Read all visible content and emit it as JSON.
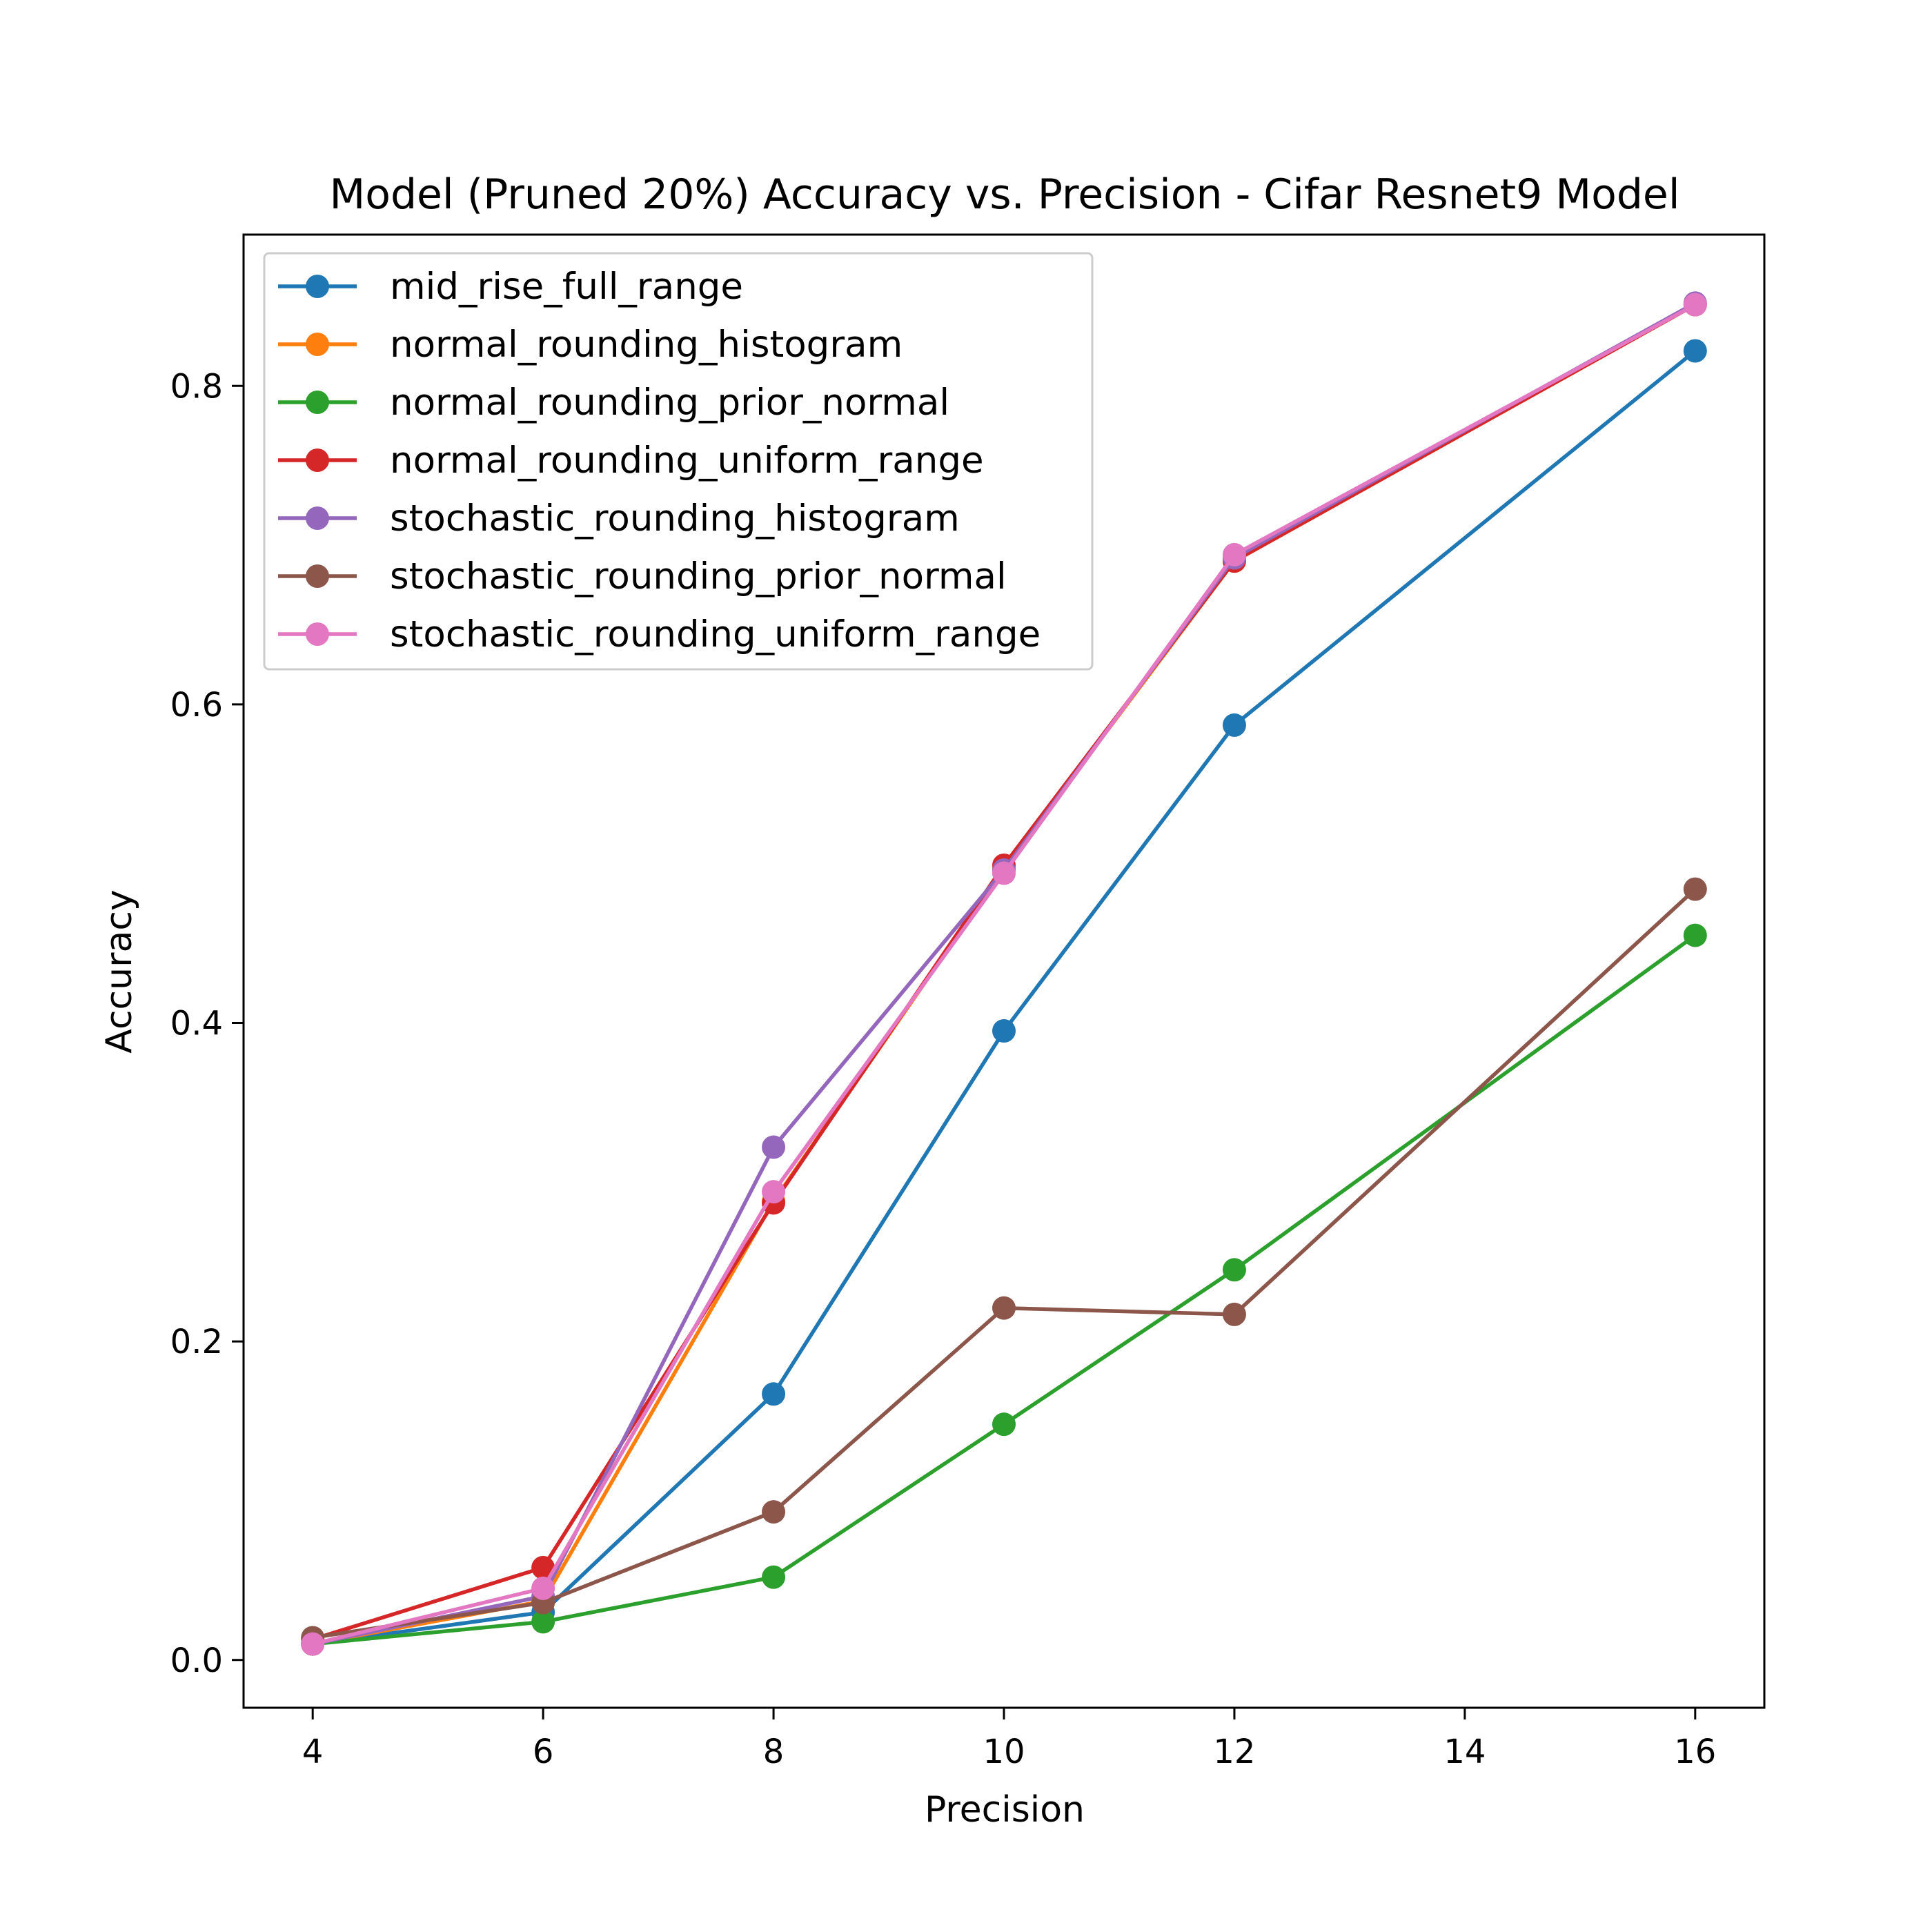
{
  "chart_data": {
    "type": "line",
    "title": "Model (Pruned 20%) Accuracy vs. Precision - Cifar Resnet9 Model",
    "xlabel": "Precision",
    "ylabel": "Accuracy",
    "x": [
      4,
      6,
      8,
      10,
      12,
      16
    ],
    "xlim": [
      3.4,
      16.6
    ],
    "ylim": [
      -0.03,
      0.895
    ],
    "xticks": [
      4,
      6,
      8,
      10,
      12,
      14,
      16
    ],
    "xtick_labels": [
      "4",
      "6",
      "8",
      "10",
      "12",
      "14",
      "16"
    ],
    "yticks": [
      0.0,
      0.2,
      0.4,
      0.6,
      0.8
    ],
    "ytick_labels": [
      "0.0",
      "0.2",
      "0.4",
      "0.6",
      "0.8"
    ],
    "grid": false,
    "legend_position": "upper-left",
    "markers": "circle",
    "series": [
      {
        "name": "mid_rise_full_range",
        "color": "#1f77b4",
        "values": [
          0.01,
          0.03,
          0.167,
          0.395,
          0.587,
          0.822
        ]
      },
      {
        "name": "normal_rounding_histogram",
        "color": "#ff7f0e",
        "values": [
          0.01,
          0.037,
          0.288,
          0.497,
          0.69,
          0.851
        ]
      },
      {
        "name": "normal_rounding_prior_normal",
        "color": "#2ca02c",
        "values": [
          0.01,
          0.024,
          0.052,
          0.148,
          0.245,
          0.455
        ]
      },
      {
        "name": "normal_rounding_uniform_range",
        "color": "#d62728",
        "values": [
          0.013,
          0.058,
          0.287,
          0.499,
          0.69,
          0.851
        ]
      },
      {
        "name": "stochastic_rounding_histogram",
        "color": "#9467bd",
        "values": [
          0.01,
          0.04,
          0.322,
          0.496,
          0.692,
          0.852
        ]
      },
      {
        "name": "stochastic_rounding_prior_normal",
        "color": "#8c564b",
        "values": [
          0.014,
          0.036,
          0.093,
          0.221,
          0.217,
          0.484
        ]
      },
      {
        "name": "stochastic_rounding_uniform_range",
        "color": "#e377c2",
        "values": [
          0.01,
          0.045,
          0.294,
          0.494,
          0.694,
          0.851
        ]
      }
    ]
  }
}
